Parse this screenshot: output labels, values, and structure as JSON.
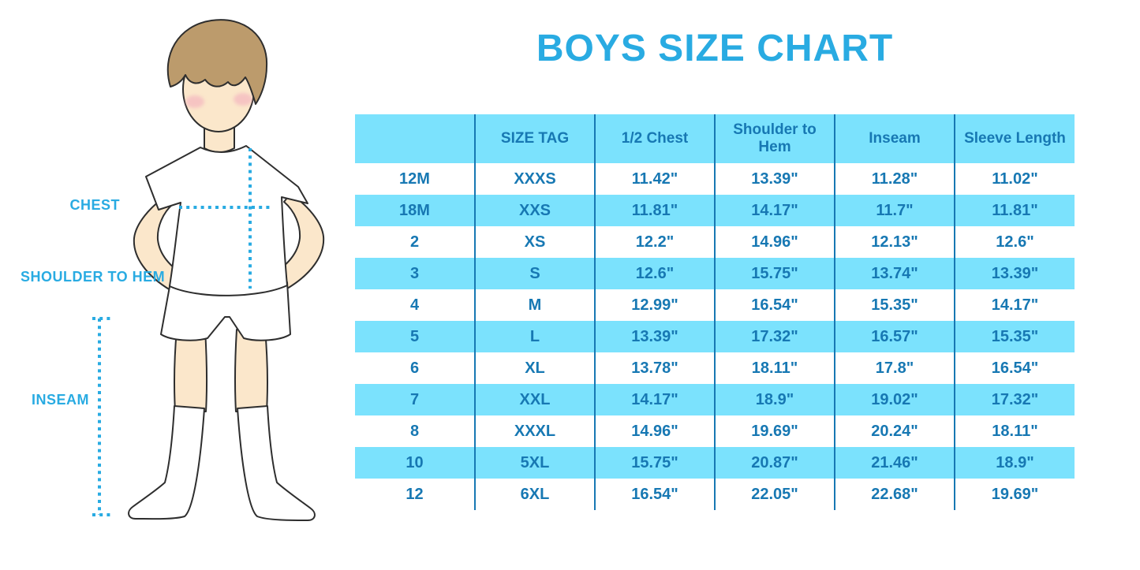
{
  "title": "BOYS SIZE CHART",
  "diagram": {
    "chest_label": "CHEST",
    "shoulder_to_hem_label": "SHOULDER TO HEM",
    "inseam_label": "INSEAM"
  },
  "table": {
    "headers": [
      "",
      "SIZE TAG",
      "1/2 Chest",
      "Shoulder to Hem",
      "Inseam",
      "Sleeve Length"
    ],
    "rows": [
      [
        "12M",
        "XXXS",
        "11.42\"",
        "13.39\"",
        "11.28\"",
        "11.02\""
      ],
      [
        "18M",
        "XXS",
        "11.81\"",
        "14.17\"",
        "11.7\"",
        "11.81\""
      ],
      [
        "2",
        "XS",
        "12.2\"",
        "14.96\"",
        "12.13\"",
        "12.6\""
      ],
      [
        "3",
        "S",
        "12.6\"",
        "15.75\"",
        "13.74\"",
        "13.39\""
      ],
      [
        "4",
        "M",
        "12.99\"",
        "16.54\"",
        "15.35\"",
        "14.17\""
      ],
      [
        "5",
        "L",
        "13.39\"",
        "17.32\"",
        "16.57\"",
        "15.35\""
      ],
      [
        "6",
        "XL",
        "13.78\"",
        "18.11\"",
        "17.8\"",
        "16.54\""
      ],
      [
        "7",
        "XXL",
        "14.17\"",
        "18.9\"",
        "19.02\"",
        "17.32\""
      ],
      [
        "8",
        "XXXL",
        "14.96\"",
        "19.69\"",
        "20.24\"",
        "18.11\""
      ],
      [
        "10",
        "5XL",
        "15.75\"",
        "20.87\"",
        "21.46\"",
        "18.9\""
      ],
      [
        "12",
        "6XL",
        "16.54\"",
        "22.05\"",
        "22.68\"",
        "19.69\""
      ]
    ]
  },
  "colors": {
    "accent_blue": "#29ABE2",
    "table_text_blue": "#1778B3",
    "row_highlight": "#7BE2FD",
    "skin": "#FBE7CB",
    "hair": "#BC9B6C",
    "blush": "#F2A9BC"
  }
}
